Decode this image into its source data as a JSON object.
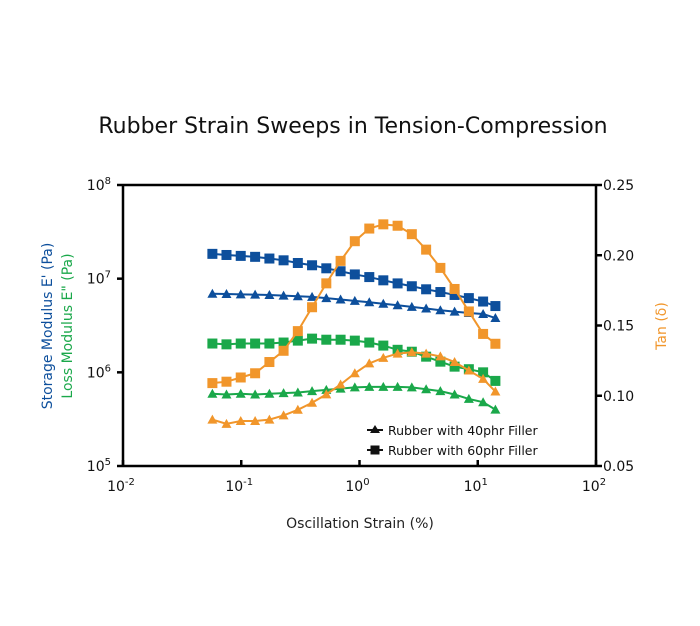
{
  "chart_data": {
    "type": "line",
    "title": "Rubber Strain Sweeps in Tension-Compression",
    "xlabel": "Oscillation Strain (%)",
    "ylabel_left": [
      "Storage Modulus E' (Pa)",
      "Loss Modulus E\" (Pa)"
    ],
    "ylabel_right": "Tan (δ)",
    "x_scale": "log",
    "y_left_scale": "log",
    "xlim": [
      0.01,
      100
    ],
    "ylim_left": [
      100000,
      100000000
    ],
    "ylim_right": [
      0.05,
      0.25
    ],
    "x_ticks": [
      {
        "base": "10",
        "exp": "-2"
      },
      {
        "base": "10",
        "exp": "-1"
      },
      {
        "base": "10",
        "exp": "0"
      },
      {
        "base": "10",
        "exp": "1"
      },
      {
        "base": "10",
        "exp": "2"
      }
    ],
    "y_left_ticks": [
      {
        "base": "10",
        "exp": "5"
      },
      {
        "base": "10",
        "exp": "6"
      },
      {
        "base": "10",
        "exp": "7"
      },
      {
        "base": "10",
        "exp": "8"
      }
    ],
    "y_right_ticks": [
      "0.05",
      "0.10",
      "0.15",
      "0.20",
      "0.25"
    ],
    "grid": false,
    "legend_position": "bottom-right",
    "legend": [
      {
        "label": "Rubber with 40phr Filler",
        "marker": "triangle"
      },
      {
        "label": "Rubber with 60phr Filler",
        "marker": "square"
      }
    ],
    "colors": {
      "storage": "#0d4f9c",
      "loss": "#1aa84a",
      "tan": "#f1962b",
      "axis": "#000000"
    },
    "x": [
      0.057,
      0.075,
      0.099,
      0.131,
      0.173,
      0.228,
      0.301,
      0.397,
      0.524,
      0.692,
      0.913,
      1.21,
      1.59,
      2.1,
      2.77,
      3.66,
      4.83,
      6.37,
      8.41,
      11.1,
      14.1
    ],
    "series": [
      {
        "name": "Storage Modulus E' - 60phr",
        "axis": "left",
        "property": "storage",
        "marker": "square",
        "values": [
          18400000,
          17900000,
          17500000,
          17100000,
          16400000,
          15700000,
          14700000,
          13900000,
          12900000,
          12000000,
          11100000,
          10400000,
          9600000,
          8900000,
          8300000,
          7700000,
          7200000,
          6700000,
          6200000,
          5700000,
          5100000
        ]
      },
      {
        "name": "Storage Modulus E' - 40phr",
        "axis": "left",
        "property": "storage",
        "marker": "triangle",
        "values": [
          6900000,
          6850000,
          6800000,
          6750000,
          6700000,
          6600000,
          6500000,
          6400000,
          6200000,
          6000000,
          5800000,
          5600000,
          5400000,
          5200000,
          5000000,
          4800000,
          4600000,
          4450000,
          4300000,
          4200000,
          3800000
        ]
      },
      {
        "name": "Loss Modulus E\" - 60phr",
        "axis": "left",
        "property": "loss",
        "marker": "square",
        "values": [
          2030000,
          1990000,
          2030000,
          2030000,
          2030000,
          2080000,
          2180000,
          2290000,
          2230000,
          2230000,
          2180000,
          2080000,
          1930000,
          1740000,
          1660000,
          1470000,
          1300000,
          1150000,
          1080000,
          1000000,
          810000
        ]
      },
      {
        "name": "Loss Modulus E\" - 40phr",
        "axis": "left",
        "property": "loss",
        "marker": "triangle",
        "values": [
          590000,
          580000,
          590000,
          580000,
          590000,
          600000,
          610000,
          630000,
          650000,
          670000,
          690000,
          700000,
          700000,
          700000,
          690000,
          660000,
          630000,
          580000,
          520000,
          480000,
          400000
        ]
      },
      {
        "name": "Tan (δ) - 60phr",
        "axis": "right",
        "property": "tan",
        "marker": "square",
        "values": [
          0.109,
          0.11,
          0.113,
          0.116,
          0.124,
          0.132,
          0.146,
          0.163,
          0.18,
          0.196,
          0.21,
          0.219,
          0.222,
          0.221,
          0.215,
          0.204,
          0.191,
          0.176,
          0.16,
          0.144,
          0.137
        ]
      },
      {
        "name": "Tan (δ) - 40phr",
        "axis": "right",
        "property": "tan",
        "marker": "triangle",
        "values": [
          0.083,
          0.08,
          0.082,
          0.082,
          0.083,
          0.086,
          0.09,
          0.095,
          0.101,
          0.108,
          0.116,
          0.123,
          0.127,
          0.13,
          0.131,
          0.13,
          0.128,
          0.124,
          0.118,
          0.112,
          0.103
        ]
      }
    ]
  }
}
